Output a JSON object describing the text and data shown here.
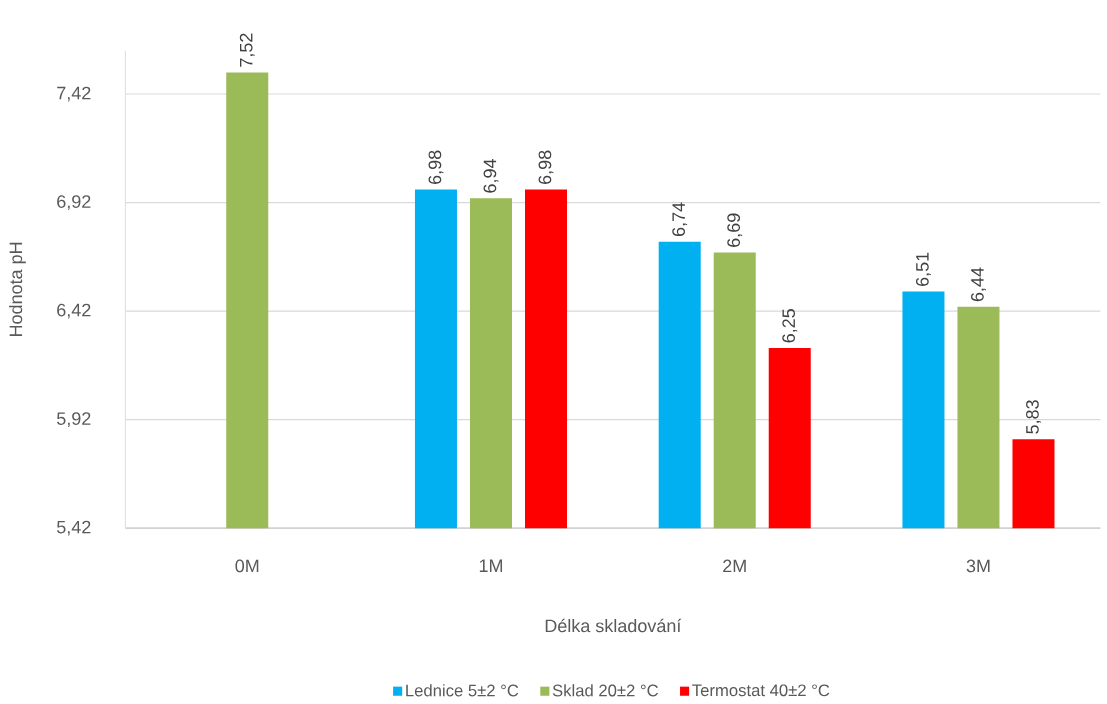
{
  "chart_data": {
    "type": "bar",
    "xlabel": "Délka skladování",
    "ylabel": "Hodnota pH",
    "categories": [
      "0M",
      "1M",
      "2M",
      "3M"
    ],
    "series": [
      {
        "name": "Lednice 5±2 °C",
        "color": "#00b0f0",
        "values": [
          null,
          6.98,
          6.74,
          6.51
        ],
        "value_labels": [
          null,
          "6,98",
          "6,74",
          "6,51"
        ]
      },
      {
        "name": "Sklad 20±2 °C",
        "color": "#9bbb59",
        "values": [
          7.52,
          6.94,
          6.69,
          6.44
        ],
        "value_labels": [
          "7,52",
          "6,94",
          "6,69",
          "6,44"
        ]
      },
      {
        "name": "Termostat 40±2 °C",
        "color": "#ff0000",
        "values": [
          null,
          6.98,
          6.25,
          5.83
        ],
        "value_labels": [
          null,
          "6,98",
          "6,25",
          "5,83"
        ]
      }
    ],
    "ylim": [
      5.42,
      7.62
    ],
    "yticks": [
      {
        "value": 5.42,
        "label": "5,42"
      },
      {
        "value": 5.92,
        "label": "5,92"
      },
      {
        "value": 6.42,
        "label": "6,42"
      },
      {
        "value": 6.92,
        "label": "6,92"
      },
      {
        "value": 7.42,
        "label": "7,42"
      }
    ],
    "grid": "y",
    "legend": "bottom"
  }
}
